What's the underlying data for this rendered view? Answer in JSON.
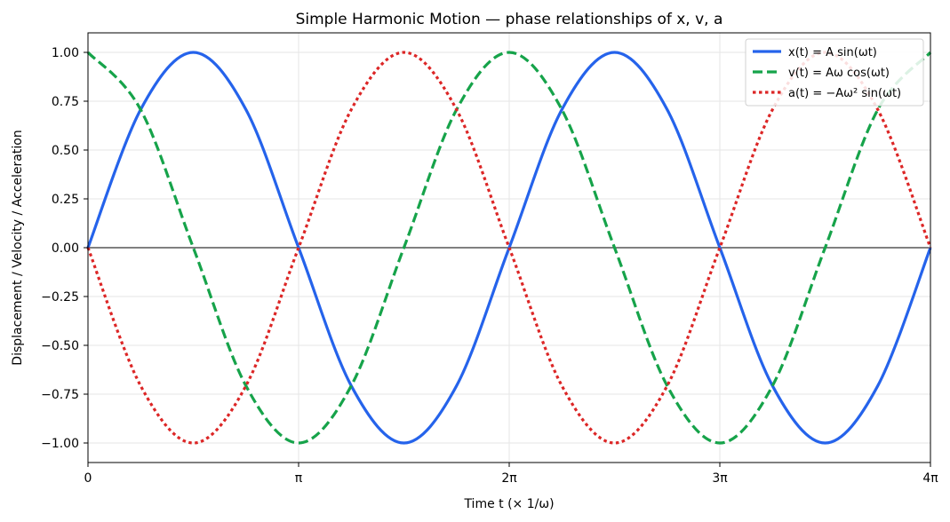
{
  "chart_data": {
    "type": "line",
    "title": "Simple Harmonic Motion — phase relationships of x, v, a",
    "xlabel": "Time t (× 1/ω)",
    "ylabel": "Displacement / Velocity / Acceleration",
    "xlim": [
      0,
      12.566370614359172
    ],
    "ylim": [
      -1.1,
      1.1
    ],
    "x_ticks": [
      {
        "value": 0,
        "label": "0"
      },
      {
        "value": 3.141592653589793,
        "label": "π"
      },
      {
        "value": 6.283185307179586,
        "label": "2π"
      },
      {
        "value": 9.42477796076938,
        "label": "3π"
      },
      {
        "value": 12.566370614359172,
        "label": "4π"
      }
    ],
    "y_ticks": [
      {
        "value": 1.0,
        "label": "1.00"
      },
      {
        "value": 0.75,
        "label": "0.75"
      },
      {
        "value": 0.5,
        "label": "0.50"
      },
      {
        "value": 0.25,
        "label": "0.25"
      },
      {
        "value": 0.0,
        "label": "0.00"
      },
      {
        "value": -0.25,
        "label": "−0.25"
      },
      {
        "value": -0.5,
        "label": "−0.50"
      },
      {
        "value": -0.75,
        "label": "−0.75"
      },
      {
        "value": -1.0,
        "label": "−1.00"
      }
    ],
    "grid": true,
    "zero_line": true,
    "legend_position": "top-right",
    "x": [
      0,
      0.7853981633974483,
      1.5707963267948966,
      2.356194490192345,
      3.141592653589793,
      3.9269908169872414,
      4.71238898038469,
      5.497787143782138,
      6.283185307179586,
      7.0685834705770345,
      7.853981633974483,
      8.63937979737193,
      9.42477796076938,
      10.210176124166829,
      10.995574287564276,
      11.780972450961723,
      12.566370614359172
    ],
    "series": [
      {
        "name": "x(t) = A sin(ωt)",
        "color": "#2563eb",
        "style": "solid",
        "values": [
          0,
          0.7071,
          1,
          0.7071,
          0,
          -0.7071,
          -1,
          -0.7071,
          0,
          0.7071,
          1,
          0.7071,
          0,
          -0.7071,
          -1,
          -0.7071,
          0
        ]
      },
      {
        "name": "v(t) = Aω cos(ωt)",
        "color": "#16a34a",
        "style": "dashed",
        "values": [
          1,
          0.7071,
          0,
          -0.7071,
          -1,
          -0.7071,
          0,
          0.7071,
          1,
          0.7071,
          0,
          -0.7071,
          -1,
          -0.7071,
          0,
          0.7071,
          1
        ]
      },
      {
        "name": "a(t) = −Aω² sin(ωt)",
        "color": "#dc2626",
        "style": "dotted",
        "values": [
          0,
          -0.7071,
          -1,
          -0.7071,
          0,
          0.7071,
          1,
          0.7071,
          0,
          -0.7071,
          -1,
          -0.7071,
          0,
          0.7071,
          1,
          0.7071,
          0
        ]
      }
    ]
  }
}
